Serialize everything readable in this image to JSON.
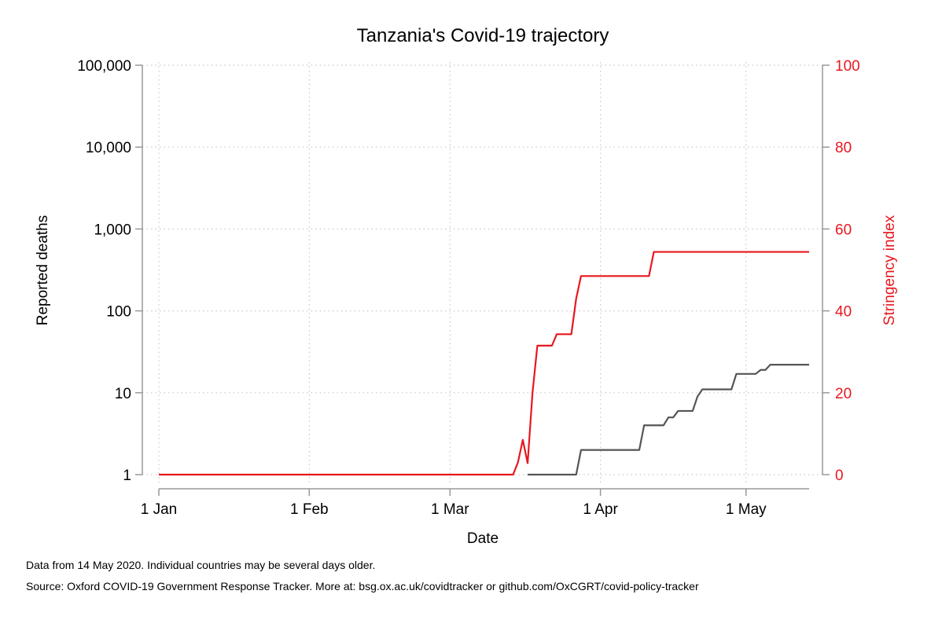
{
  "chart_data": {
    "type": "line",
    "title": "Tanzania's Covid-19 trajectory",
    "xlabel": "Date",
    "ylabel_left": "Reported deaths",
    "ylabel_right": "Stringency index",
    "x_ticks": [
      {
        "day": 1,
        "label": "1 Jan"
      },
      {
        "day": 32,
        "label": "1 Feb"
      },
      {
        "day": 61,
        "label": "1 Mar"
      },
      {
        "day": 92,
        "label": "1 Apr"
      },
      {
        "day": 122,
        "label": "1 May"
      }
    ],
    "xlim": [
      1,
      135
    ],
    "left_axis": {
      "scale": "log",
      "ylim": [
        1,
        100000
      ],
      "ticks": [
        {
          "value": 1,
          "label": "1"
        },
        {
          "value": 10,
          "label": "10"
        },
        {
          "value": 100,
          "label": "100"
        },
        {
          "value": 1000,
          "label": "1,000"
        },
        {
          "value": 10000,
          "label": "10,000"
        },
        {
          "value": 100000,
          "label": "100,000"
        }
      ]
    },
    "right_axis": {
      "scale": "linear",
      "ylim": [
        0,
        100
      ],
      "ticks": [
        {
          "value": 0,
          "label": "0"
        },
        {
          "value": 20,
          "label": "20"
        },
        {
          "value": 40,
          "label": "40"
        },
        {
          "value": 60,
          "label": "60"
        },
        {
          "value": 80,
          "label": "80"
        },
        {
          "value": 100,
          "label": "100"
        }
      ]
    },
    "grid": true,
    "series": [
      {
        "name": "Stringency index",
        "axis": "right",
        "color": "#e8171f",
        "points": [
          [
            1,
            0
          ],
          [
            74,
            0
          ],
          [
            75,
            3
          ],
          [
            76,
            8.5
          ],
          [
            77,
            2.8
          ],
          [
            78,
            20
          ],
          [
            79,
            31.5
          ],
          [
            82,
            31.5
          ],
          [
            83,
            34.3
          ],
          [
            86,
            34.3
          ],
          [
            87,
            43
          ],
          [
            88,
            48.5
          ],
          [
            102,
            48.5
          ],
          [
            103,
            54.4
          ],
          [
            135,
            54.4
          ]
        ]
      },
      {
        "name": "Reported deaths",
        "axis": "left",
        "color": "#555555",
        "points": [
          [
            77,
            1
          ],
          [
            87,
            1
          ],
          [
            88,
            2
          ],
          [
            100,
            2
          ],
          [
            101,
            4
          ],
          [
            105,
            4
          ],
          [
            106,
            5
          ],
          [
            107,
            5
          ],
          [
            108,
            6
          ],
          [
            111,
            6
          ],
          [
            112,
            9
          ],
          [
            113,
            11
          ],
          [
            119,
            11
          ],
          [
            120,
            17
          ],
          [
            124,
            17
          ],
          [
            125,
            19
          ],
          [
            126,
            19
          ],
          [
            127,
            22
          ],
          [
            135,
            22
          ]
        ]
      }
    ]
  },
  "footer": {
    "note": "Data from 14 May 2020. Individual countries may be several days older.",
    "source": "Source: Oxford COVID-19 Government Response Tracker. More at: bsg.ox.ac.uk/covidtracker or github.com/OxCGRT/covid-policy-tracker"
  },
  "colors": {
    "stringency": "#e8171f",
    "deaths": "#555555",
    "axis": "#999999",
    "grid": "#c8c8c8",
    "text": "#000000"
  }
}
